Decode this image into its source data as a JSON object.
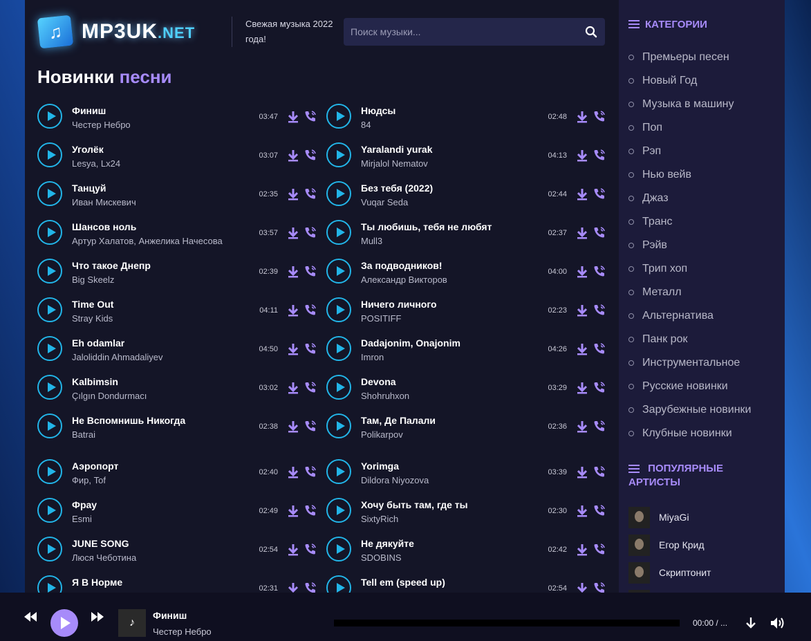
{
  "header": {
    "logo_text": "MP3UK",
    "logo_suffix": ".NET",
    "tagline": "Свежая музыка 2022 года!",
    "search_placeholder": "Поиск музыки..."
  },
  "heading": {
    "main": "Новинки",
    "accent": "песни"
  },
  "tracks": [
    {
      "title": "Финиш",
      "artist": "Честер Небро",
      "duration": "03:47"
    },
    {
      "title": "Нюдсы",
      "artist": "84",
      "duration": "02:48"
    },
    {
      "title": "Уголёк",
      "artist": "Lesya, Lx24",
      "duration": "03:07"
    },
    {
      "title": "Yaralandi yurak",
      "artist": "Mirjalol Nematov",
      "duration": "04:13"
    },
    {
      "title": "Танцуй",
      "artist": "Иван Мискевич",
      "duration": "02:35"
    },
    {
      "title": "Без тебя (2022)",
      "artist": "Vuqar Seda",
      "duration": "02:44"
    },
    {
      "title": "Шансов ноль",
      "artist": "Артур Халатов, Анжелика Начесова",
      "duration": "03:57"
    },
    {
      "title": "Ты любишь, тебя не любят",
      "artist": "Mull3",
      "duration": "02:37"
    },
    {
      "title": "Что такое Днепр",
      "artist": "Big Skeelz",
      "duration": "02:39"
    },
    {
      "title": "За подводников!",
      "artist": "Александр Викторов",
      "duration": "04:00"
    },
    {
      "title": "Time Out",
      "artist": "Stray Kids",
      "duration": "04:11"
    },
    {
      "title": "Ничего личного",
      "artist": "POSITIFF",
      "duration": "02:23"
    },
    {
      "title": "Eh odamlar",
      "artist": "Jaloliddin Ahmadaliyev",
      "duration": "04:50"
    },
    {
      "title": "Dadajonim, Onajonim",
      "artist": "Imron",
      "duration": "04:26"
    },
    {
      "title": "Kalbimsin",
      "artist": "Çılgın Dondurmacı",
      "duration": "03:02"
    },
    {
      "title": "Devona",
      "artist": "Shohruhxon",
      "duration": "03:29"
    },
    {
      "title": "Не Вспомнишь Никогда",
      "artist": "Batrai",
      "duration": "02:38"
    },
    {
      "title": "Там, Де Палали",
      "artist": "Polikarpov",
      "duration": "02:36"
    },
    {
      "title": "Аэропорт",
      "artist": "Фир, Tof",
      "duration": "02:40"
    },
    {
      "title": "Yorimga",
      "artist": "Dildora Niyozova",
      "duration": "03:39"
    },
    {
      "title": "Фрау",
      "artist": "Esmi",
      "duration": "02:49"
    },
    {
      "title": "Хочу быть там, где ты",
      "artist": "SixtyRich",
      "duration": "02:30"
    },
    {
      "title": "JUNE SONG",
      "artist": "Люся Чеботина",
      "duration": "02:54"
    },
    {
      "title": "Не дякуйте",
      "artist": "SDOBINS",
      "duration": "02:42"
    },
    {
      "title": "Я В Норме",
      "artist": "",
      "duration": "02:31"
    },
    {
      "title": "Tell em (speed up)",
      "artist": "",
      "duration": "02:54"
    }
  ],
  "sidebar": {
    "categories_title": "КАТЕГОРИИ",
    "categories": [
      "Премьеры песен",
      "Новый Год",
      "Музыка в машину",
      "Поп",
      "Рэп",
      "Нью вейв",
      "Джаз",
      "Транс",
      "Рэйв",
      "Трип хоп",
      "Металл",
      "Альтернатива",
      "Панк рок",
      "Инструментальное",
      "Русские новинки",
      "Зарубежные новинки",
      "Клубные новинки"
    ],
    "artists_title": "ПОПУЛЯРНЫЕ АРТИСТЫ",
    "artists": [
      "MiyaGi",
      "Егор Крид",
      "Скриптонит",
      ""
    ]
  },
  "player": {
    "title": "Финиш",
    "artist": "Честер Небро",
    "time": "00:00  /  ...",
    "progress": 0
  },
  "colors": {
    "accent": "#a78bfa",
    "play": "#22b5e8",
    "panel": "#141527",
    "sidebar": "#1c1b3a"
  }
}
